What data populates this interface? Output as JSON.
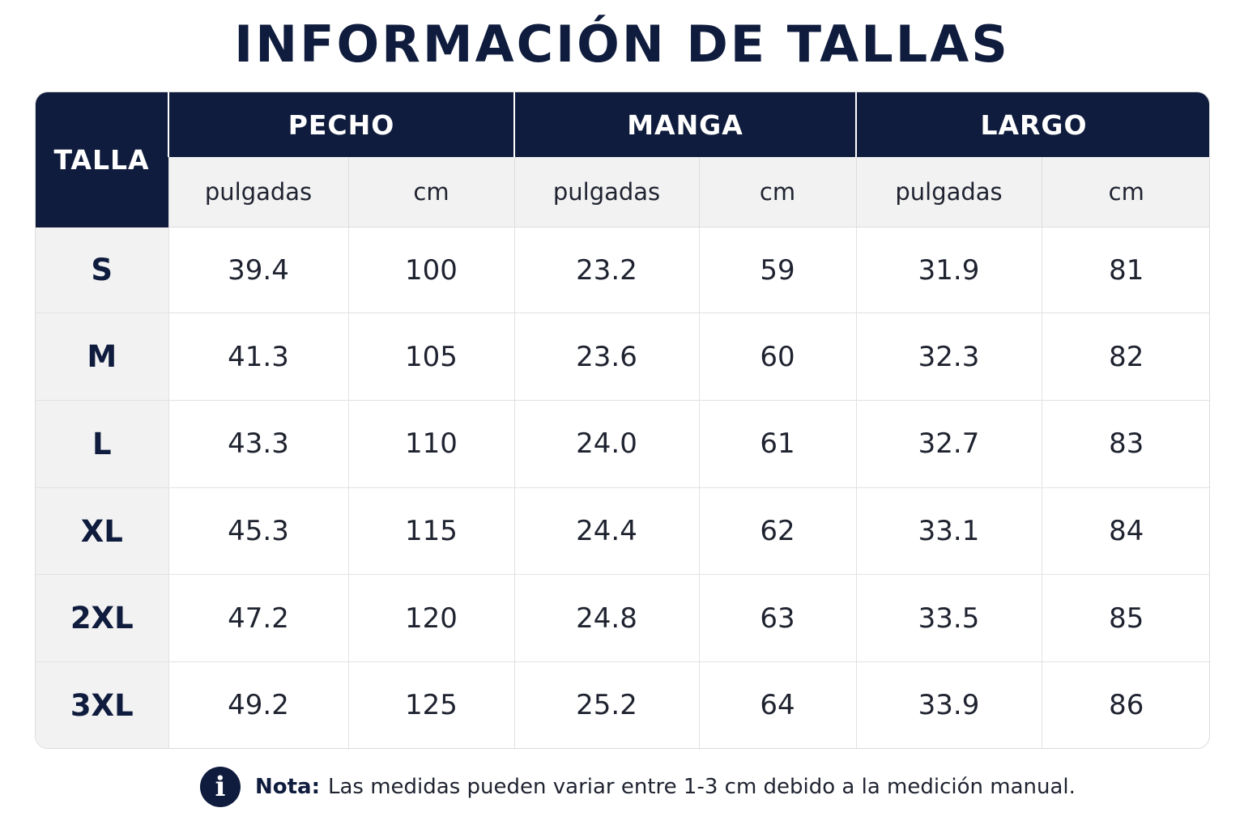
{
  "title": "INFORMACIÓN DE TALLAS",
  "table": {
    "size_header": "TALLA",
    "groups": [
      "PECHO",
      "MANGA",
      "LARGO"
    ],
    "units": [
      "pulgadas",
      "cm",
      "pulgadas",
      "cm",
      "pulgadas",
      "cm"
    ],
    "rows": [
      {
        "size": "S",
        "values": [
          "39.4",
          "100",
          "23.2",
          "59",
          "31.9",
          "81"
        ]
      },
      {
        "size": "M",
        "values": [
          "41.3",
          "105",
          "23.6",
          "60",
          "32.3",
          "82"
        ]
      },
      {
        "size": "L",
        "values": [
          "43.3",
          "110",
          "24.0",
          "61",
          "32.7",
          "83"
        ]
      },
      {
        "size": "XL",
        "values": [
          "45.3",
          "115",
          "24.4",
          "62",
          "33.1",
          "84"
        ]
      },
      {
        "size": "2XL",
        "values": [
          "47.2",
          "120",
          "24.8",
          "63",
          "33.5",
          "85"
        ]
      },
      {
        "size": "3XL",
        "values": [
          "49.2",
          "125",
          "25.2",
          "64",
          "33.9",
          "86"
        ]
      }
    ]
  },
  "note": {
    "icon": "info-icon",
    "icon_glyph": "i",
    "label": "Nota:",
    "text": "Las medidas pueden variar entre 1-3 cm debido a la medición manual."
  },
  "colors": {
    "header_bg": "#0f1c3d",
    "subheader_bg": "#f2f2f2"
  }
}
